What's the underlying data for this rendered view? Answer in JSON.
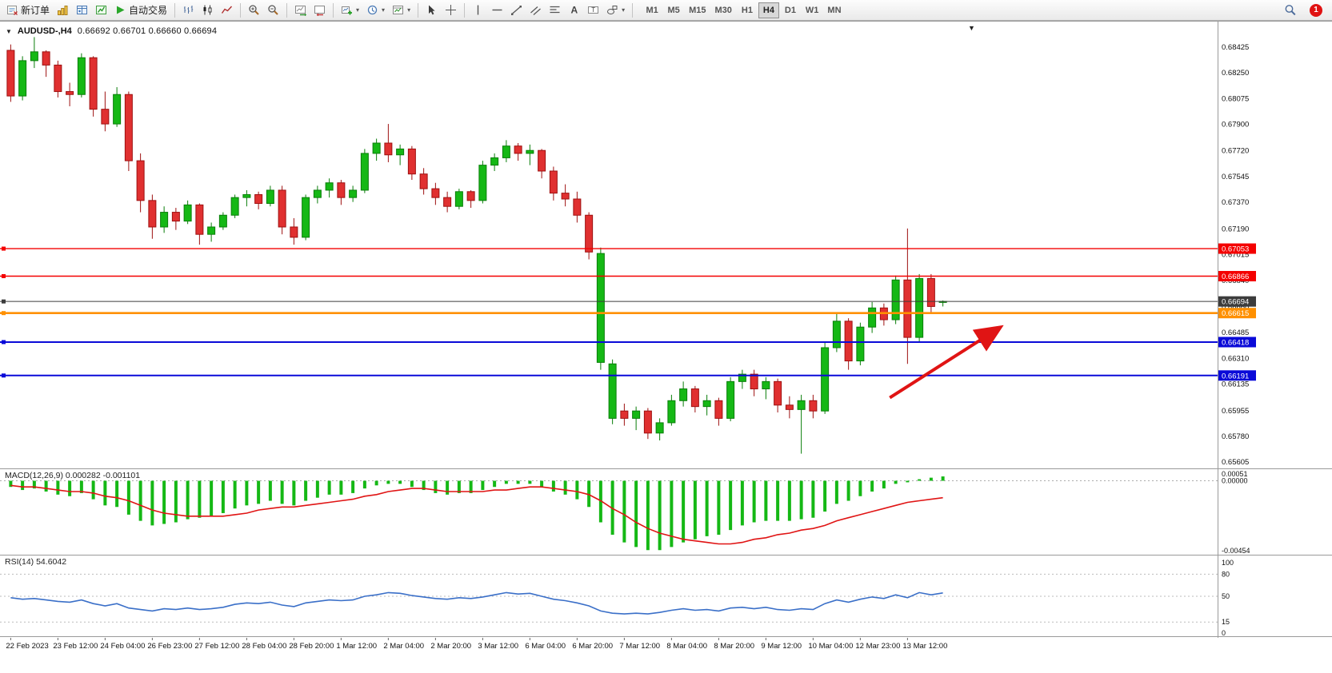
{
  "toolbar": {
    "new_order_label": "新订单",
    "autotrading_label": "自动交易",
    "timeframes": [
      "M1",
      "M5",
      "M15",
      "M30",
      "H1",
      "H4",
      "D1",
      "W1",
      "MN"
    ],
    "active_timeframe": "H4",
    "notification_count": "1"
  },
  "colors": {
    "bull": "#15b815",
    "bull_stroke": "#0a7e0a",
    "bear": "#e03030",
    "bear_stroke": "#9e1010",
    "macd_histogram": "#15b815",
    "macd_signal": "#e01414",
    "rsi_line": "#3a6fc8",
    "hline_red": "#f40000",
    "hline_orange": "#ff9000",
    "hline_blue": "#0a0ad8",
    "current_price": "#3c3c3c",
    "arrow": "#e01414"
  },
  "chart_data": [
    {
      "type": "candlestick",
      "symbol": "AUDUSD-,H4",
      "ohlc_text": "0.66692 0.66701 0.66660 0.66694",
      "timeframe": "H4",
      "ylim": [
        0.6556,
        0.6859
      ],
      "y_ticks": [
        0.68425,
        0.6825,
        0.68075,
        0.679,
        0.6772,
        0.67545,
        0.6737,
        0.6719,
        0.67015,
        0.6684,
        0.6666,
        0.66485,
        0.6631,
        0.66135,
        0.65955,
        0.6578,
        0.65605
      ],
      "hlines": [
        {
          "value": 0.67053,
          "label": "0.67053",
          "color_key": "hline_red",
          "width": 1.4
        },
        {
          "value": 0.66866,
          "label": "0.66866",
          "color_key": "hline_red",
          "width": 1.4
        },
        {
          "value": 0.66694,
          "label": "0.66694",
          "color_key": "current_price",
          "width": 1
        },
        {
          "value": 0.66615,
          "label": "0.66615",
          "color_key": "hline_orange",
          "width": 2.6
        },
        {
          "value": 0.66418,
          "label": "0.66418",
          "color_key": "hline_blue",
          "width": 2
        },
        {
          "value": 0.66191,
          "label": "0.66191",
          "color_key": "hline_blue",
          "width": 2
        }
      ],
      "arrow": {
        "i1": 74.5,
        "p1": 0.6604,
        "i2": 83.7,
        "p2": 0.6651
      },
      "x_labels": [
        {
          "index": 0,
          "label": "22 Feb 2023"
        },
        {
          "index": 4,
          "label": "23 Feb 12:00"
        },
        {
          "index": 8,
          "label": "24 Feb 04:00"
        },
        {
          "index": 12,
          "label": "26 Feb 23:00"
        },
        {
          "index": 16,
          "label": "27 Feb 12:00"
        },
        {
          "index": 20,
          "label": "28 Feb 04:00"
        },
        {
          "index": 24,
          "label": "28 Feb 20:00"
        },
        {
          "index": 28,
          "label": "1 Mar 12:00"
        },
        {
          "index": 32,
          "label": "2 Mar 04:00"
        },
        {
          "index": 36,
          "label": "2 Mar 20:00"
        },
        {
          "index": 40,
          "label": "3 Mar 12:00"
        },
        {
          "index": 44,
          "label": "6 Mar 04:00"
        },
        {
          "index": 48,
          "label": "6 Mar 20:00"
        },
        {
          "index": 52,
          "label": "7 Mar 12:00"
        },
        {
          "index": 56,
          "label": "8 Mar 04:00"
        },
        {
          "index": 60,
          "label": "8 Mar 20:00"
        },
        {
          "index": 64,
          "label": "9 Mar 12:00"
        },
        {
          "index": 68,
          "label": "10 Mar 04:00"
        },
        {
          "index": 72,
          "label": "12 Mar 23:00"
        },
        {
          "index": 76,
          "label": "13 Mar 12:00"
        }
      ],
      "candles": [
        [
          0.684,
          0.6844,
          0.6805,
          0.6809
        ],
        [
          0.6809,
          0.6836,
          0.6806,
          0.6833
        ],
        [
          0.6833,
          0.6849,
          0.6828,
          0.6839
        ],
        [
          0.6839,
          0.684,
          0.6822,
          0.683
        ],
        [
          0.683,
          0.6833,
          0.6808,
          0.6812
        ],
        [
          0.6812,
          0.6818,
          0.6802,
          0.681
        ],
        [
          0.681,
          0.6838,
          0.6808,
          0.6835
        ],
        [
          0.6835,
          0.6836,
          0.6795,
          0.68
        ],
        [
          0.68,
          0.6812,
          0.6785,
          0.679
        ],
        [
          0.679,
          0.6815,
          0.6788,
          0.681
        ],
        [
          0.681,
          0.6812,
          0.6758,
          0.6765
        ],
        [
          0.6765,
          0.677,
          0.673,
          0.6738
        ],
        [
          0.6738,
          0.6742,
          0.6712,
          0.672
        ],
        [
          0.672,
          0.6734,
          0.6716,
          0.673
        ],
        [
          0.673,
          0.6733,
          0.6718,
          0.6724
        ],
        [
          0.6724,
          0.6738,
          0.6722,
          0.6735
        ],
        [
          0.6735,
          0.6736,
          0.6708,
          0.6715
        ],
        [
          0.6715,
          0.6723,
          0.671,
          0.672
        ],
        [
          0.672,
          0.673,
          0.6718,
          0.6728
        ],
        [
          0.6728,
          0.6742,
          0.6726,
          0.674
        ],
        [
          0.674,
          0.6745,
          0.6734,
          0.6742
        ],
        [
          0.6742,
          0.6744,
          0.6732,
          0.6736
        ],
        [
          0.6736,
          0.6748,
          0.6734,
          0.6745
        ],
        [
          0.6745,
          0.6748,
          0.6715,
          0.672
        ],
        [
          0.672,
          0.6726,
          0.6708,
          0.6713
        ],
        [
          0.6713,
          0.6742,
          0.6711,
          0.674
        ],
        [
          0.674,
          0.6748,
          0.6736,
          0.6745
        ],
        [
          0.6745,
          0.6753,
          0.674,
          0.675
        ],
        [
          0.675,
          0.6752,
          0.6735,
          0.674
        ],
        [
          0.674,
          0.6748,
          0.6737,
          0.6745
        ],
        [
          0.6745,
          0.6773,
          0.6743,
          0.677
        ],
        [
          0.677,
          0.678,
          0.6765,
          0.6777
        ],
        [
          0.6777,
          0.679,
          0.6764,
          0.6769
        ],
        [
          0.6769,
          0.6776,
          0.6762,
          0.6773
        ],
        [
          0.6773,
          0.6775,
          0.6752,
          0.6756
        ],
        [
          0.6756,
          0.676,
          0.6742,
          0.6746
        ],
        [
          0.6746,
          0.675,
          0.6735,
          0.674
        ],
        [
          0.674,
          0.6744,
          0.673,
          0.6734
        ],
        [
          0.6734,
          0.6746,
          0.6732,
          0.6744
        ],
        [
          0.6744,
          0.6745,
          0.6733,
          0.6738
        ],
        [
          0.6738,
          0.6765,
          0.6736,
          0.6762
        ],
        [
          0.6762,
          0.677,
          0.6758,
          0.6767
        ],
        [
          0.6767,
          0.6779,
          0.6764,
          0.6775
        ],
        [
          0.6775,
          0.6777,
          0.6765,
          0.677
        ],
        [
          0.677,
          0.6776,
          0.6762,
          0.6772
        ],
        [
          0.6772,
          0.6773,
          0.6753,
          0.6758
        ],
        [
          0.6758,
          0.6761,
          0.6738,
          0.6743
        ],
        [
          0.6743,
          0.6749,
          0.6734,
          0.6739
        ],
        [
          0.6739,
          0.6744,
          0.6723,
          0.6728
        ],
        [
          0.6728,
          0.673,
          0.6698,
          0.6703
        ],
        [
          0.6628,
          0.6706,
          0.6623,
          0.6702
        ],
        [
          0.659,
          0.663,
          0.6586,
          0.6627
        ],
        [
          0.6595,
          0.66,
          0.6585,
          0.659
        ],
        [
          0.659,
          0.6598,
          0.6582,
          0.6595
        ],
        [
          0.6595,
          0.6597,
          0.6576,
          0.658
        ],
        [
          0.658,
          0.659,
          0.6575,
          0.6587
        ],
        [
          0.6587,
          0.6606,
          0.6585,
          0.6602
        ],
        [
          0.6602,
          0.6615,
          0.6598,
          0.661
        ],
        [
          0.661,
          0.6612,
          0.6594,
          0.6598
        ],
        [
          0.6598,
          0.6606,
          0.6592,
          0.6602
        ],
        [
          0.6602,
          0.6604,
          0.6585,
          0.659
        ],
        [
          0.659,
          0.6618,
          0.6588,
          0.6615
        ],
        [
          0.6615,
          0.6623,
          0.661,
          0.662
        ],
        [
          0.662,
          0.6623,
          0.6605,
          0.661
        ],
        [
          0.661,
          0.6618,
          0.6603,
          0.6615
        ],
        [
          0.6615,
          0.6617,
          0.6594,
          0.6599
        ],
        [
          0.6599,
          0.6605,
          0.659,
          0.6596
        ],
        [
          0.6596,
          0.6606,
          0.6566,
          0.6602
        ],
        [
          0.6602,
          0.6606,
          0.659,
          0.6595
        ],
        [
          0.6595,
          0.6642,
          0.6593,
          0.6638
        ],
        [
          0.6638,
          0.6661,
          0.6635,
          0.6656
        ],
        [
          0.6656,
          0.6658,
          0.6623,
          0.6629
        ],
        [
          0.6629,
          0.6655,
          0.6626,
          0.6652
        ],
        [
          0.6652,
          0.6669,
          0.6648,
          0.6665
        ],
        [
          0.6665,
          0.6668,
          0.6653,
          0.6657
        ],
        [
          0.6657,
          0.6687,
          0.6654,
          0.6684
        ],
        [
          0.6684,
          0.6719,
          0.6627,
          0.6645
        ],
        [
          0.6645,
          0.6688,
          0.6642,
          0.6685
        ],
        [
          0.6685,
          0.6688,
          0.6661,
          0.6666
        ],
        [
          0.66692,
          0.66701,
          0.6666,
          0.66694
        ]
      ]
    },
    {
      "type": "macd",
      "label": "MACD(12,26,9) 0.000282 -0.001101",
      "value_main": 0.000282,
      "value_signal": -0.001101,
      "ylim": [
        -0.0048,
        0.0007
      ],
      "y_ticks": [
        {
          "v": 0.00051,
          "label": "0.00051"
        },
        {
          "v": 0,
          "label": "0.00000"
        },
        {
          "v": -0.00454,
          "label": "-0.00454"
        }
      ],
      "histogram": [
        -0.0004,
        -0.0006,
        -0.0005,
        -0.0007,
        -0.0009,
        -0.001,
        -0.0008,
        -0.0012,
        -0.0016,
        -0.0017,
        -0.0022,
        -0.0026,
        -0.0029,
        -0.0028,
        -0.0027,
        -0.0025,
        -0.0024,
        -0.0023,
        -0.0021,
        -0.0018,
        -0.0016,
        -0.0015,
        -0.0013,
        -0.0015,
        -0.0016,
        -0.0013,
        -0.0011,
        -0.0009,
        -0.0009,
        -0.0008,
        -0.0005,
        -0.0003,
        -0.0002,
        -0.0002,
        -0.0004,
        -0.0006,
        -0.0008,
        -0.0009,
        -0.0008,
        -0.0008,
        -0.0006,
        -0.0004,
        -0.0002,
        -0.0002,
        -0.0002,
        -0.0004,
        -0.0007,
        -0.0009,
        -0.0012,
        -0.0017,
        -0.0027,
        -0.0035,
        -0.004,
        -0.0043,
        -0.0045,
        -0.0045,
        -0.0043,
        -0.004,
        -0.0038,
        -0.0036,
        -0.0035,
        -0.0032,
        -0.0029,
        -0.0027,
        -0.0026,
        -0.0026,
        -0.0026,
        -0.0025,
        -0.0024,
        -0.002,
        -0.0015,
        -0.0013,
        -0.001,
        -0.0007,
        -0.0005,
        -0.0002,
        -0.0001,
        0.0001,
        0.0002,
        0.000282
      ],
      "signal": [
        -0.0003,
        -0.0004,
        -0.0004,
        -0.0005,
        -0.0006,
        -0.0007,
        -0.0007,
        -0.0008,
        -0.001,
        -0.0011,
        -0.0013,
        -0.0016,
        -0.0019,
        -0.0021,
        -0.0022,
        -0.0023,
        -0.0023,
        -0.0023,
        -0.0023,
        -0.0022,
        -0.0021,
        -0.0019,
        -0.0018,
        -0.0017,
        -0.0017,
        -0.0016,
        -0.0015,
        -0.0014,
        -0.0013,
        -0.0012,
        -0.001,
        -0.0009,
        -0.0007,
        -0.0006,
        -0.0005,
        -0.0005,
        -0.0006,
        -0.0007,
        -0.0007,
        -0.0007,
        -0.0007,
        -0.0006,
        -0.0006,
        -0.0005,
        -0.0004,
        -0.0004,
        -0.0005,
        -0.0006,
        -0.0007,
        -0.0009,
        -0.0013,
        -0.0018,
        -0.0022,
        -0.0027,
        -0.0031,
        -0.0034,
        -0.0036,
        -0.0038,
        -0.0039,
        -0.004,
        -0.0041,
        -0.0041,
        -0.004,
        -0.0038,
        -0.0037,
        -0.0035,
        -0.0034,
        -0.0032,
        -0.0031,
        -0.0029,
        -0.0026,
        -0.0024,
        -0.0022,
        -0.002,
        -0.0018,
        -0.0016,
        -0.0014,
        -0.0013,
        -0.0012,
        -0.001101
      ]
    },
    {
      "type": "line",
      "label": "RSI(14) 54.6042",
      "value": 54.6042,
      "ylim": [
        0,
        100
      ],
      "levels": [
        80,
        50,
        15
      ],
      "y_ticks": [
        {
          "v": 100,
          "label": "100"
        },
        {
          "v": 80,
          "label": "80"
        },
        {
          "v": 50,
          "label": "50"
        },
        {
          "v": 15,
          "label": "15"
        },
        {
          "v": 0,
          "label": "0"
        }
      ],
      "values": [
        48,
        46,
        47,
        45,
        43,
        42,
        45,
        40,
        37,
        40,
        34,
        32,
        30,
        33,
        32,
        34,
        32,
        33,
        35,
        39,
        41,
        40,
        42,
        38,
        36,
        41,
        43,
        45,
        44,
        45,
        50,
        52,
        55,
        54,
        51,
        49,
        47,
        46,
        48,
        47,
        49,
        52,
        55,
        53,
        54,
        50,
        46,
        44,
        41,
        37,
        30,
        27,
        26,
        27,
        26,
        28,
        31,
        33,
        31,
        32,
        30,
        34,
        35,
        33,
        35,
        32,
        31,
        33,
        32,
        40,
        45,
        42,
        46,
        49,
        47,
        52,
        48,
        55,
        52,
        54.6042
      ]
    }
  ]
}
